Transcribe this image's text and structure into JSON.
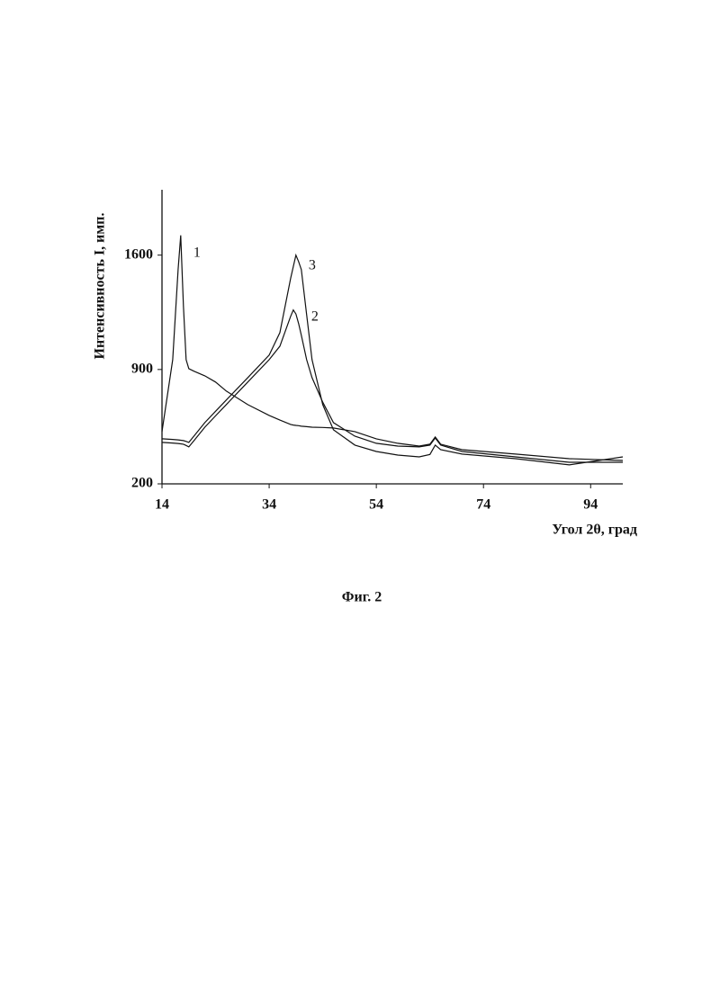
{
  "chart_data": {
    "type": "line",
    "caption": "Фиг. 2",
    "x_label": "Угол 2θ, град",
    "y_label": "Интенсивность I, имп.",
    "x": [
      14,
      16,
      17,
      17.5,
      18,
      18.5,
      19,
      20,
      22,
      24,
      26,
      30,
      34,
      36,
      38,
      38.5,
      39,
      39.5,
      40,
      41,
      42,
      44,
      46,
      50,
      54,
      58,
      62,
      64,
      65,
      66,
      70,
      80,
      90,
      100
    ],
    "series": [
      {
        "name": "1",
        "color": "#111111",
        "values": [
          520,
          960,
          1512,
          1721,
          1290,
          960,
          905,
          889,
          861,
          823,
          768,
          685,
          619,
          590,
          564,
          560,
          558,
          556,
          553,
          550,
          547,
          545,
          542,
          520,
          476,
          448,
          431,
          443,
          487,
          443,
          409,
          382,
          354,
          343
        ]
      },
      {
        "name": "2",
        "color": "#111111",
        "values": [
          454,
          450,
          447,
          445,
          443,
          435,
          426,
          466,
          547,
          616,
          685,
          823,
          960,
          1043,
          1225,
          1264,
          1240,
          1181,
          1110,
          960,
          850,
          700,
          575,
          492,
          448,
          431,
          426,
          437,
          481,
          437,
          398,
          365,
          332,
          332
        ]
      },
      {
        "name": "3",
        "color": "#111111",
        "values": [
          476,
          472,
          469,
          467,
          465,
          460,
          454,
          494,
          575,
          644,
          713,
          850,
          988,
          1126,
          1457,
          1530,
          1600,
          1560,
          1512,
          1236,
          960,
          685,
          531,
          437,
          398,
          376,
          365,
          380,
          437,
          409,
          382,
          354,
          316,
          365
        ]
      }
    ],
    "xlim": [
      14,
      100
    ],
    "ylim": [
      200,
      2000
    ],
    "xticks": [
      14,
      34,
      54,
      74,
      94
    ],
    "yticks": [
      200,
      900,
      1600
    ],
    "grid": false
  }
}
